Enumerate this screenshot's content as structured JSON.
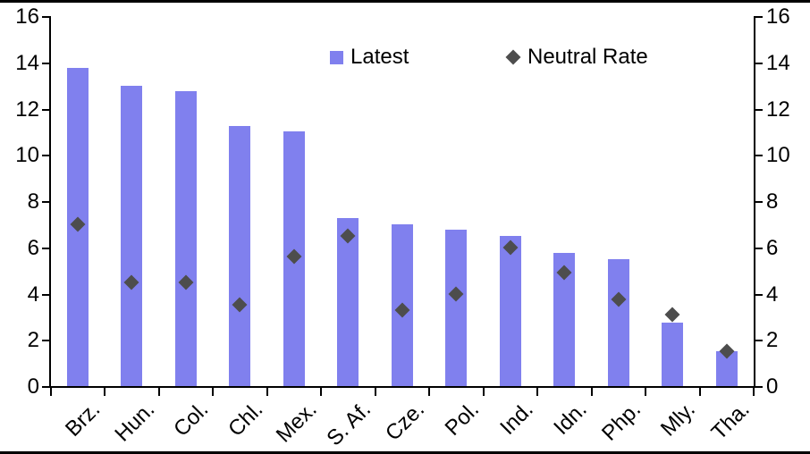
{
  "chart_data": {
    "type": "bar",
    "title": "",
    "categories": [
      "Brz.",
      "Hun.",
      "Col.",
      "Chl.",
      "Mex.",
      "S. Af.",
      "Cze.",
      "Pol.",
      "Ind.",
      "Idn.",
      "Php.",
      "Mly.",
      "Tha."
    ],
    "series": [
      {
        "name": "Latest",
        "type": "bar",
        "color": "#8080ee",
        "values": [
          13.75,
          13.0,
          12.75,
          11.25,
          11.0,
          7.25,
          7.0,
          6.75,
          6.5,
          5.75,
          5.5,
          2.75,
          1.5
        ]
      },
      {
        "name": "Neutral Rate",
        "type": "scatter",
        "marker": "diamond",
        "color": "#4d4d4d",
        "values": [
          7.0,
          4.5,
          4.5,
          3.5,
          5.6,
          6.5,
          3.3,
          4.0,
          6.0,
          4.9,
          3.75,
          3.1,
          1.5
        ]
      }
    ],
    "xlabel": "",
    "ylabel": "",
    "ylim": [
      0,
      16
    ],
    "yticks": [
      0,
      2,
      4,
      6,
      8,
      10,
      12,
      14,
      16
    ],
    "grid": false,
    "axes": {
      "left": true,
      "right": true,
      "dual_labels": true
    },
    "legend_position": "top-center"
  },
  "colors": {
    "bar": "#8080ee",
    "diamond": "#4d4d4d",
    "axis": "#000000",
    "background": "#ffffff",
    "text": "#000000"
  }
}
